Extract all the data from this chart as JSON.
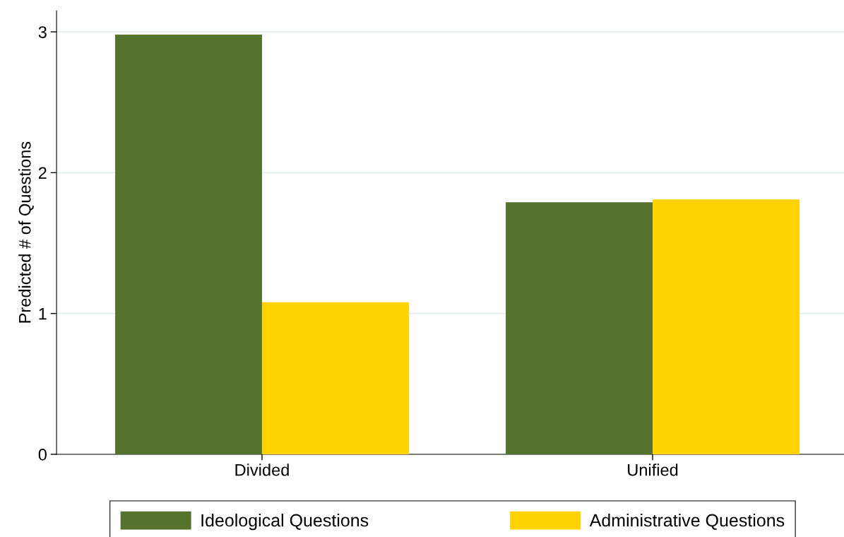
{
  "chart_data": {
    "type": "bar",
    "ylabel": "Predicted # of Questions",
    "categories": [
      "Divided",
      "Unified"
    ],
    "series": [
      {
        "name": "Ideological Questions",
        "color": "#56732e",
        "values": [
          2.98,
          1.79
        ]
      },
      {
        "name": "Administrative Questions",
        "color": "#ffd200",
        "values": [
          1.08,
          1.81
        ]
      }
    ],
    "ylim": [
      0,
      3.15
    ],
    "yticks": [
      0,
      1,
      2,
      3
    ],
    "grid": "y",
    "legend": "bottom"
  }
}
